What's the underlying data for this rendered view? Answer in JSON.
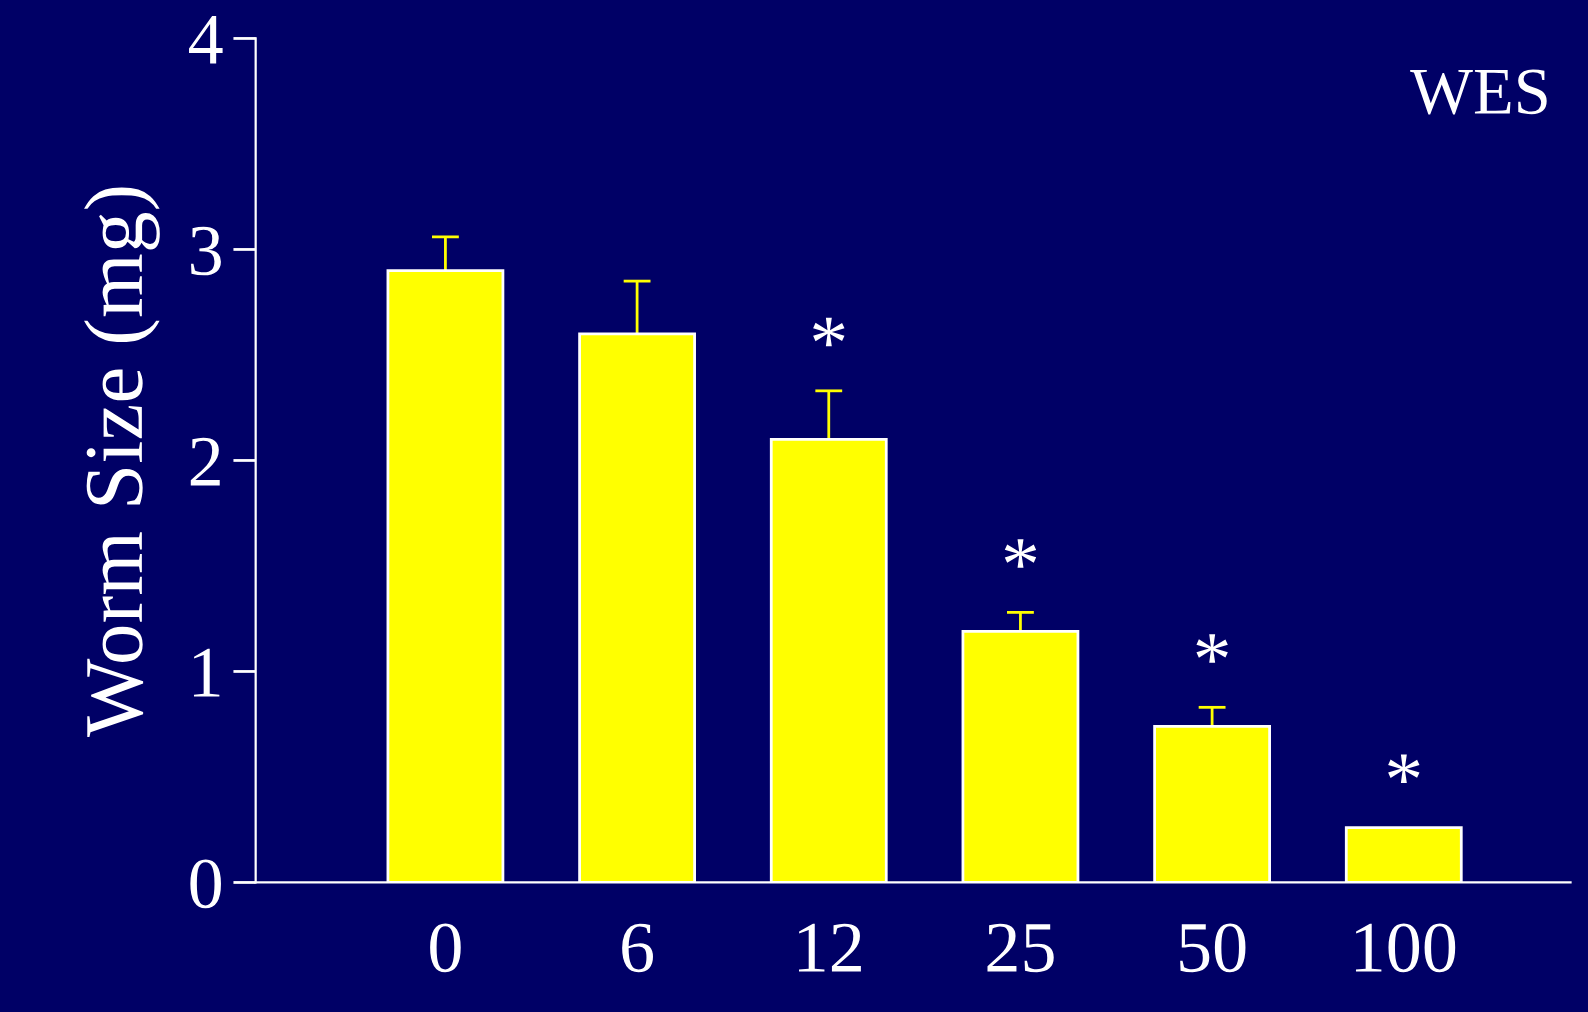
{
  "chart_data": {
    "type": "bar",
    "ylabel": "Worm Size (mg)",
    "categories": [
      "0",
      "6",
      "12",
      "25",
      "50",
      "100"
    ],
    "values": [
      2.9,
      2.6,
      2.1,
      1.19,
      0.74,
      0.26
    ],
    "errors": [
      [
        2.9,
        3.06
      ],
      [
        2.6,
        2.85
      ],
      [
        2.1,
        2.33
      ],
      [
        1.19,
        1.28
      ],
      [
        0.74,
        0.83
      ],
      null
    ],
    "color": "#ffff00",
    "ylim": [
      0,
      4
    ],
    "yticks": [
      0,
      1,
      2,
      3,
      4
    ],
    "grid": false,
    "legend": false,
    "value_labels": [
      null,
      null,
      "*",
      "*",
      "*",
      "*"
    ],
    "annotations": [
      "WES"
    ]
  }
}
